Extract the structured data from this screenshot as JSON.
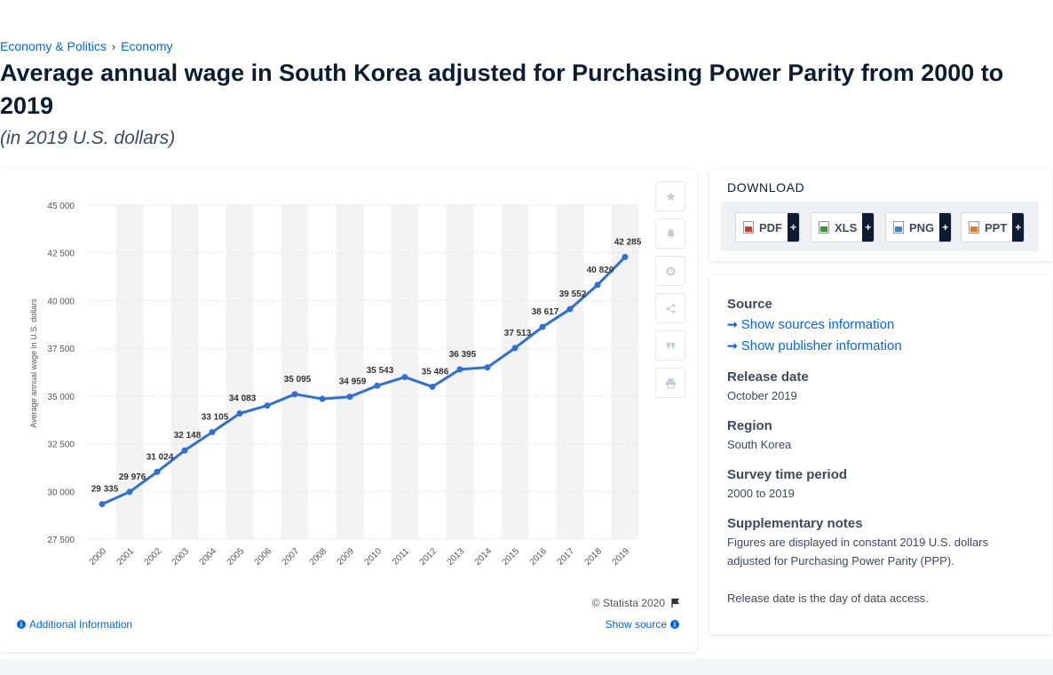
{
  "breadcrumb": [
    "Economy & Politics",
    "Economy"
  ],
  "title": "Average annual wage in South Korea adjusted for Purchasing Power Parity from 2000 to 2019",
  "subtitle": "(in 2019 U.S. dollars)",
  "chart_data": {
    "type": "line",
    "x": [
      "2000",
      "2001",
      "2002",
      "2003",
      "2004",
      "2005",
      "2006",
      "2007",
      "2008",
      "2009",
      "2010",
      "2011",
      "2012",
      "2013",
      "2014",
      "2015",
      "2016",
      "2017",
      "2018",
      "2019"
    ],
    "series": [
      {
        "values": [
          29335,
          29976,
          31024,
          32148,
          33105,
          34083,
          34500,
          35095,
          34850,
          34959,
          35543,
          35990,
          35486,
          36395,
          36500,
          37513,
          38617,
          39552,
          40820,
          42285
        ]
      }
    ],
    "labeled_points": {
      "2000": "29 335",
      "2001": "29 976",
      "2002": "31 024",
      "2003": "32 148",
      "2004": "33 105",
      "2005": "34 083",
      "2007": "35 095",
      "2009": "34 959",
      "2010": "35 543",
      "2012": "35 486",
      "2013": "36 395",
      "2015": "37 513",
      "2016": "38 617",
      "2017": "39 552",
      "2018": "40 820",
      "2019": "42 285"
    },
    "ylabel": "Average annual wage in U.S. dollars",
    "xlabel": "",
    "yticks": [
      "27 500",
      "30 000",
      "32 500",
      "35 000",
      "37 500",
      "40 000",
      "42 500",
      "45 000"
    ],
    "ylim": [
      27500,
      45000
    ],
    "grid": true,
    "line_color": "#2f6fd6"
  },
  "chart_footer": {
    "copyright": "© Statista 2020",
    "additional_info": "Additional Information",
    "show_source": "Show source"
  },
  "download": {
    "title": "DOWNLOAD",
    "buttons": [
      "PDF",
      "XLS",
      "PNG",
      "PPT"
    ],
    "plus": "+"
  },
  "info": {
    "source_heading": "Source",
    "show_sources": "Show sources information",
    "show_publisher": "Show publisher information",
    "release_heading": "Release date",
    "release_value": "October 2019",
    "region_heading": "Region",
    "region_value": "South Korea",
    "survey_heading": "Survey time period",
    "survey_value": "2000 to 2019",
    "notes_heading": "Supplementary notes",
    "notes_value": "Figures are displayed in constant 2019 U.S. dollars adjusted for Purchasing Power Parity (PPP).",
    "notes_value2": "Release date is the day of data access."
  }
}
